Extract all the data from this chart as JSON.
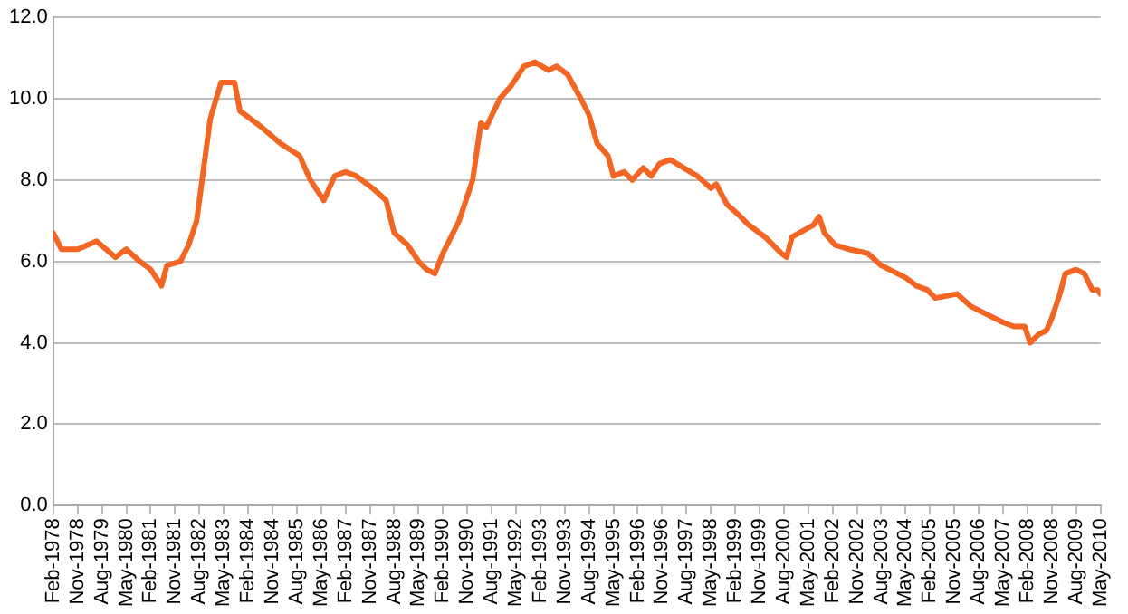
{
  "chart_data": {
    "type": "line",
    "x": [
      "1978-02",
      "1978-05",
      "1978-11",
      "1979-06",
      "1980-01",
      "1980-05",
      "1980-10",
      "1981-02",
      "1981-06",
      "1981-08",
      "1982-01",
      "1982-04",
      "1982-07",
      "1982-09",
      "1982-12",
      "1983-04",
      "1983-09",
      "1983-11",
      "1984-07",
      "1985-02",
      "1985-09",
      "1986-01",
      "1986-06",
      "1986-10",
      "1987-02",
      "1987-06",
      "1987-12",
      "1988-05",
      "1988-08",
      "1989-01",
      "1989-05",
      "1989-08",
      "1989-11",
      "1990-02",
      "1990-08",
      "1991-01",
      "1991-04",
      "1991-06",
      "1991-11",
      "1992-03",
      "1992-08",
      "1992-12",
      "1993-05",
      "1993-08",
      "1993-12",
      "1994-05",
      "1994-08",
      "1994-11",
      "1995-03",
      "1995-05",
      "1995-09",
      "1995-12",
      "1996-04",
      "1996-07",
      "1996-10",
      "1997-02",
      "1997-07",
      "1997-12",
      "1998-05",
      "1998-07",
      "1998-11",
      "1999-04",
      "1999-07",
      "2000-01",
      "2000-07",
      "2000-09",
      "2000-11",
      "2001-07",
      "2001-09",
      "2001-11",
      "2002-03",
      "2002-08",
      "2003-03",
      "2003-08",
      "2004-05",
      "2004-09",
      "2005-01",
      "2005-04",
      "2005-12",
      "2006-05",
      "2006-11",
      "2007-05",
      "2007-09",
      "2008-01",
      "2008-03",
      "2008-06",
      "2008-09",
      "2008-11",
      "2009-02",
      "2009-04",
      "2009-08",
      "2009-11",
      "2010-02",
      "2010-04",
      "2010-05"
    ],
    "series": [
      {
        "color": "#f26522",
        "values": [
          6.7,
          6.3,
          6.3,
          6.5,
          6.1,
          6.3,
          6.0,
          5.8,
          5.4,
          5.9,
          6.0,
          6.4,
          7.0,
          8.0,
          9.5,
          10.4,
          10.4,
          9.7,
          9.3,
          8.9,
          8.6,
          8.0,
          7.5,
          8.1,
          8.2,
          8.1,
          7.8,
          7.5,
          6.7,
          6.4,
          6.0,
          5.8,
          5.7,
          6.2,
          7.0,
          8.0,
          9.4,
          9.3,
          10.0,
          10.3,
          10.8,
          10.9,
          10.7,
          10.8,
          10.6,
          10.0,
          9.6,
          8.9,
          8.6,
          8.1,
          8.2,
          8.0,
          8.3,
          8.1,
          8.4,
          8.5,
          8.3,
          8.1,
          7.8,
          7.9,
          7.4,
          7.1,
          6.9,
          6.6,
          6.2,
          6.1,
          6.6,
          6.9,
          7.1,
          6.7,
          6.4,
          6.3,
          6.2,
          5.9,
          5.6,
          5.4,
          5.3,
          5.1,
          5.2,
          4.9,
          4.7,
          4.5,
          4.4,
          4.4,
          4.0,
          4.2,
          4.3,
          4.6,
          5.2,
          5.7,
          5.8,
          5.7,
          5.3,
          5.3,
          5.2
        ]
      }
    ],
    "xlim": [
      "1978-02",
      "2010-05"
    ],
    "xticks": [
      {
        "value": "1978-02",
        "label": "Feb-1978"
      },
      {
        "value": "1978-11",
        "label": "Nov-1978"
      },
      {
        "value": "1979-08",
        "label": "Aug-1979"
      },
      {
        "value": "1980-05",
        "label": "May-1980"
      },
      {
        "value": "1981-02",
        "label": "Feb-1981"
      },
      {
        "value": "1981-11",
        "label": "Nov-1981"
      },
      {
        "value": "1982-08",
        "label": "Aug-1982"
      },
      {
        "value": "1983-05",
        "label": "May-1983"
      },
      {
        "value": "1984-02",
        "label": "Feb-1984"
      },
      {
        "value": "1984-11",
        "label": "Nov-1984"
      },
      {
        "value": "1985-08",
        "label": "Aug-1985"
      },
      {
        "value": "1986-05",
        "label": "May-1986"
      },
      {
        "value": "1987-02",
        "label": "Feb-1987"
      },
      {
        "value": "1987-11",
        "label": "Nov-1987"
      },
      {
        "value": "1988-08",
        "label": "Aug-1988"
      },
      {
        "value": "1989-05",
        "label": "May-1989"
      },
      {
        "value": "1990-02",
        "label": "Feb-1990"
      },
      {
        "value": "1990-11",
        "label": "Nov-1990"
      },
      {
        "value": "1991-08",
        "label": "Aug-1991"
      },
      {
        "value": "1992-05",
        "label": "May-1992"
      },
      {
        "value": "1993-02",
        "label": "Feb-1993"
      },
      {
        "value": "1993-11",
        "label": "Nov-1993"
      },
      {
        "value": "1994-08",
        "label": "Aug-1994"
      },
      {
        "value": "1995-05",
        "label": "May-1995"
      },
      {
        "value": "1996-02",
        "label": "Feb-1996"
      },
      {
        "value": "1996-11",
        "label": "Nov-1996"
      },
      {
        "value": "1997-08",
        "label": "Aug-1997"
      },
      {
        "value": "1998-05",
        "label": "May-1998"
      },
      {
        "value": "1999-02",
        "label": "Feb-1999"
      },
      {
        "value": "1999-11",
        "label": "Nov-1999"
      },
      {
        "value": "2000-08",
        "label": "Aug-2000"
      },
      {
        "value": "2001-05",
        "label": "May-2001"
      },
      {
        "value": "2002-02",
        "label": "Feb-2002"
      },
      {
        "value": "2002-11",
        "label": "Nov-2002"
      },
      {
        "value": "2003-08",
        "label": "Aug-2003"
      },
      {
        "value": "2004-05",
        "label": "May-2004"
      },
      {
        "value": "2005-02",
        "label": "Feb-2005"
      },
      {
        "value": "2005-11",
        "label": "Nov-2005"
      },
      {
        "value": "2006-08",
        "label": "Aug-2006"
      },
      {
        "value": "2007-05",
        "label": "May-2007"
      },
      {
        "value": "2008-02",
        "label": "Feb-2008"
      },
      {
        "value": "2008-11",
        "label": "Nov-2008"
      },
      {
        "value": "2009-08",
        "label": "Aug-2009"
      },
      {
        "value": "2010-05",
        "label": "May-2010"
      }
    ],
    "ylim": [
      0,
      12
    ],
    "yticks": [
      {
        "value": 0,
        "label": "0.0"
      },
      {
        "value": 2,
        "label": "2.0"
      },
      {
        "value": 4,
        "label": "4.0"
      },
      {
        "value": 6,
        "label": "6.0"
      },
      {
        "value": 8,
        "label": "8.0"
      },
      {
        "value": 10,
        "label": "10.0"
      },
      {
        "value": 12,
        "label": "12.0"
      }
    ],
    "grid": "y",
    "legend": false,
    "marker": "none",
    "line_style": "solid"
  }
}
